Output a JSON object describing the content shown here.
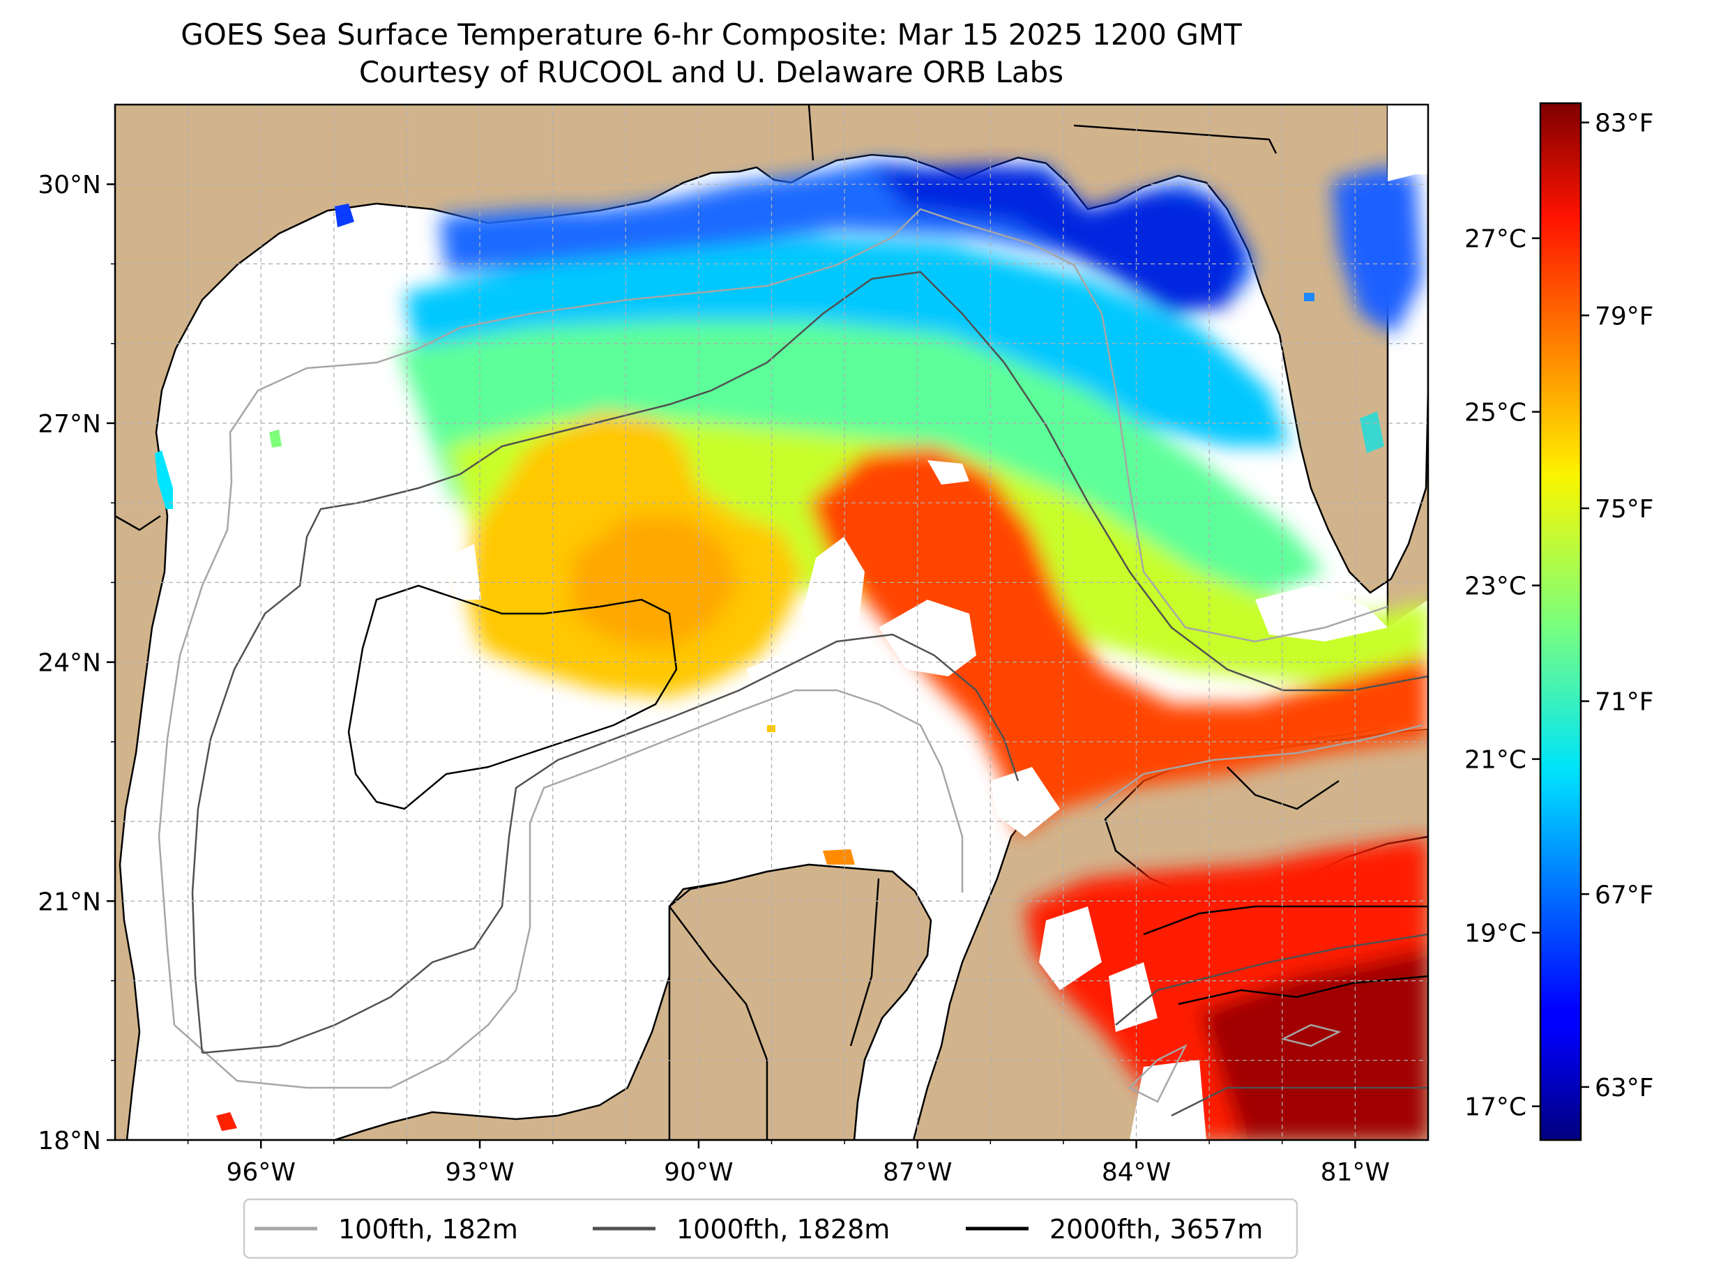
{
  "title": {
    "line1": "GOES Sea Surface Temperature 6-hr Composite: Mar 15 2025 1200 GMT",
    "line2": "Courtesy of RUCOOL and U. Delaware ORB Labs"
  },
  "map": {
    "extent": {
      "lon_min": -98,
      "lon_max": -80,
      "lat_min": 18,
      "lat_max": 31
    },
    "x_ticks": [
      {
        "lon": -96,
        "label": "96°W"
      },
      {
        "lon": -93,
        "label": "93°W"
      },
      {
        "lon": -90,
        "label": "90°W"
      },
      {
        "lon": -87,
        "label": "87°W"
      },
      {
        "lon": -84,
        "label": "84°W"
      },
      {
        "lon": -81,
        "label": "81°W"
      }
    ],
    "y_ticks": [
      {
        "lat": 30,
        "label": "30°N"
      },
      {
        "lat": 27,
        "label": "27°N"
      },
      {
        "lat": 24,
        "label": "24°N"
      },
      {
        "lat": 21,
        "label": "21°N"
      },
      {
        "lat": 18,
        "label": "18°N"
      }
    ],
    "grid": true,
    "colors": {
      "land": "#d2b48c",
      "water_no_data": "#ffffff",
      "grid": "#b0b0b0",
      "coastline": "#000000",
      "iso_100": "#a6a6a6",
      "iso_1000": "#505050",
      "iso_2000": "#000000"
    }
  },
  "colorbar": {
    "colormap": "jet",
    "celsius_ticks": [
      {
        "value": 17,
        "label": "17°C"
      },
      {
        "value": 19,
        "label": "19°C"
      },
      {
        "value": 21,
        "label": "21°C"
      },
      {
        "value": 23,
        "label": "23°C"
      },
      {
        "value": 25,
        "label": "25°C"
      },
      {
        "value": 27,
        "label": "27°C"
      }
    ],
    "fahrenheit_ticks": [
      {
        "value": 63,
        "label": "63°F"
      },
      {
        "value": 67,
        "label": "67°F"
      },
      {
        "value": 71,
        "label": "71°F"
      },
      {
        "value": 75,
        "label": "75°F"
      },
      {
        "value": 79,
        "label": "79°F"
      },
      {
        "value": 83,
        "label": "83°F"
      }
    ],
    "range_f": [
      61.9,
      83.4
    ]
  },
  "legend": {
    "placement": "bottom-center",
    "items": [
      {
        "label": "100fth, 182m",
        "color": "#a6a6a6"
      },
      {
        "label": "1000fth, 1828m",
        "color": "#505050"
      },
      {
        "label": "2000fth, 3657m",
        "color": "#000000"
      }
    ]
  }
}
